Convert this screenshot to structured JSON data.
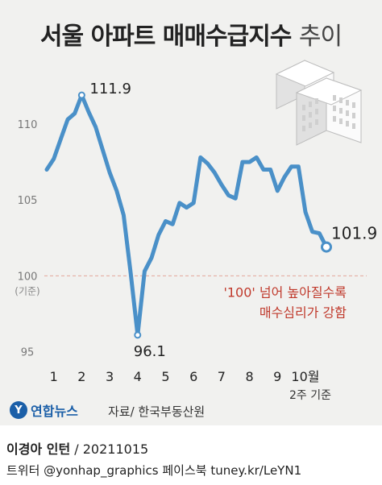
{
  "title": {
    "bold": "서울 아파트 매매수급지수",
    "light": "추이"
  },
  "chart_data": {
    "type": "line",
    "title": "서울 아파트 매매수급지수 추이",
    "ylabel": "",
    "xlabel": "",
    "ylim": [
      94.5,
      113.5
    ],
    "yticks": [
      95,
      100,
      105,
      110
    ],
    "ytick_labels": [
      "95",
      "100",
      "105",
      "110"
    ],
    "baseline_label": "(기준)",
    "baseline_value": 100,
    "x_month_labels": [
      {
        "label": "1",
        "x": 1
      },
      {
        "label": "2",
        "x": 5
      },
      {
        "label": "3",
        "x": 9
      },
      {
        "label": "4",
        "x": 13
      },
      {
        "label": "5",
        "x": 17
      },
      {
        "label": "6",
        "x": 21
      },
      {
        "label": "7",
        "x": 25
      },
      {
        "label": "8",
        "x": 29
      },
      {
        "label": "9",
        "x": 33
      },
      {
        "label": "10월",
        "x": 37
      }
    ],
    "x_last_note": "2주 기준",
    "series": [
      {
        "name": "",
        "color": "#4a90c8",
        "points": [
          [
            0,
            107.0
          ],
          [
            1,
            107.7
          ],
          [
            2,
            109.0
          ],
          [
            3,
            110.3
          ],
          [
            4,
            110.7
          ],
          [
            5,
            111.9
          ],
          [
            6,
            110.8
          ],
          [
            7,
            109.8
          ],
          [
            8,
            108.3
          ],
          [
            9,
            106.8
          ],
          [
            10,
            105.6
          ],
          [
            11,
            104.0
          ],
          [
            12,
            100.2
          ],
          [
            13,
            96.1
          ],
          [
            14,
            100.3
          ],
          [
            15,
            101.2
          ],
          [
            16,
            102.7
          ],
          [
            17,
            103.6
          ],
          [
            18,
            103.4
          ],
          [
            19,
            104.8
          ],
          [
            20,
            104.5
          ],
          [
            21,
            104.8
          ],
          [
            22,
            107.8
          ],
          [
            23,
            107.4
          ],
          [
            24,
            106.8
          ],
          [
            25,
            106.0
          ],
          [
            26,
            105.3
          ],
          [
            27,
            105.1
          ],
          [
            28,
            107.5
          ],
          [
            29,
            107.5
          ],
          [
            30,
            107.8
          ],
          [
            31,
            107.0
          ],
          [
            32,
            107.0
          ],
          [
            33,
            105.6
          ],
          [
            34,
            106.5
          ],
          [
            35,
            107.2
          ],
          [
            36,
            107.2
          ],
          [
            37,
            104.2
          ],
          [
            38,
            102.9
          ],
          [
            39,
            102.8
          ],
          [
            40,
            101.9
          ]
        ]
      }
    ],
    "annotations": [
      {
        "label": "111.9",
        "x": 5,
        "y": 111.9
      },
      {
        "label": "96.1",
        "x": 13,
        "y": 96.1
      },
      {
        "label": "101.9",
        "x": 40,
        "y": 101.9
      }
    ],
    "note_lines": [
      "'100' 넘어 높아질수록",
      "매수심리가 강함"
    ],
    "note_color": "#c0392b",
    "grid": false
  },
  "footer": {
    "logo_mark": "Y",
    "logo_text": "연합뉴스",
    "source": "자료/ 한국부동산원",
    "author": "이경아 인턴",
    "date": " / 20211015",
    "social": "트위터 @yonhap_graphics  페이스북 tuney.kr/LeYN1"
  }
}
